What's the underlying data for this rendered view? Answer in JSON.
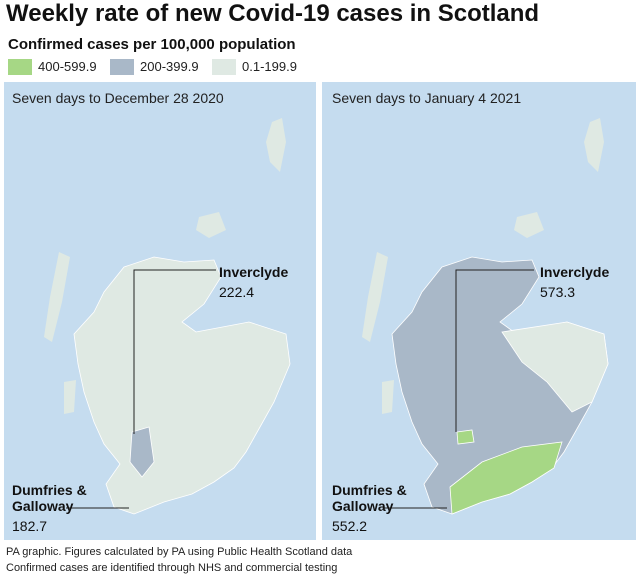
{
  "title": "Weekly rate of new Covid-19 cases in Scotland",
  "legend": {
    "title": "Confirmed cases per 100,000 population",
    "items": [
      {
        "label": "400-599.9",
        "color": "#a6d785"
      },
      {
        "label": "200-399.9",
        "color": "#a9b8c8"
      },
      {
        "label": "0.1-199.9",
        "color": "#dfe9e3"
      }
    ]
  },
  "panels": [
    {
      "title": "Seven days to December 28 2020",
      "callouts": [
        {
          "name": "Inverclyde",
          "value": 222.4
        },
        {
          "name": "Dumfries & Galloway",
          "value": 182.7
        }
      ]
    },
    {
      "title": "Seven days to January 4 2021",
      "callouts": [
        {
          "name": "Inverclyde",
          "value": 573.3
        },
        {
          "name": "Dumfries & Galloway",
          "value": 552.2
        }
      ]
    }
  ],
  "footer": [
    "PA graphic. Figures calculated by PA using Public Health Scotland data",
    "Confirmed cases are identified through NHS and commercial testing"
  ]
}
